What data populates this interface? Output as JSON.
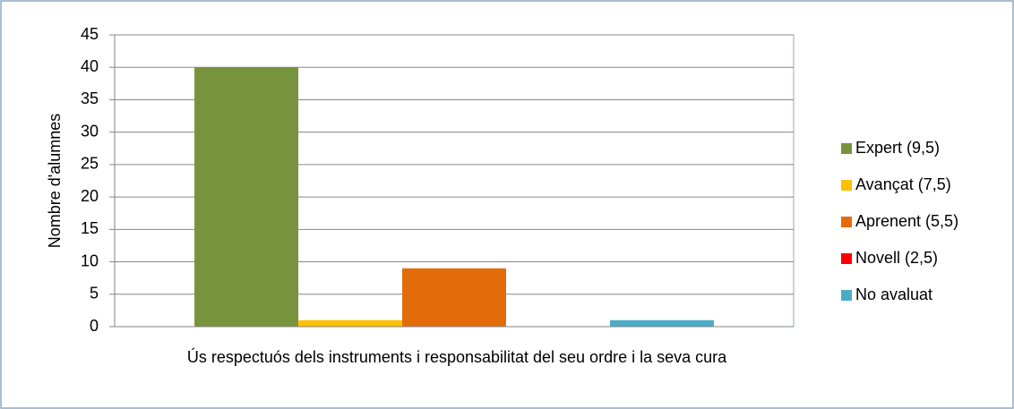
{
  "chart_data": {
    "type": "bar",
    "y_label": "Nombre d'alumnes",
    "categories": [
      "Ús respectuós dels instruments i responsabilitat del seu ordre i la seva cura"
    ],
    "series": [
      {
        "name": "Expert (9,5)",
        "color": "#77933c",
        "values": [
          40
        ]
      },
      {
        "name": "Avançat (7,5)",
        "color": "#ffc000",
        "values": [
          1
        ]
      },
      {
        "name": "Aprenent (5,5)",
        "color": "#e36c0a",
        "values": [
          9
        ]
      },
      {
        "name": "Novell (2,5)",
        "color": "#ff0000",
        "values": [
          0
        ]
      },
      {
        "name": "No avaluat",
        "color": "#4bacc6",
        "values": [
          1
        ]
      }
    ],
    "ylim": [
      0,
      45
    ],
    "yticks": [
      0,
      5,
      10,
      15,
      20,
      25,
      30,
      35,
      40,
      45
    ],
    "grid": true,
    "legend": "right"
  }
}
